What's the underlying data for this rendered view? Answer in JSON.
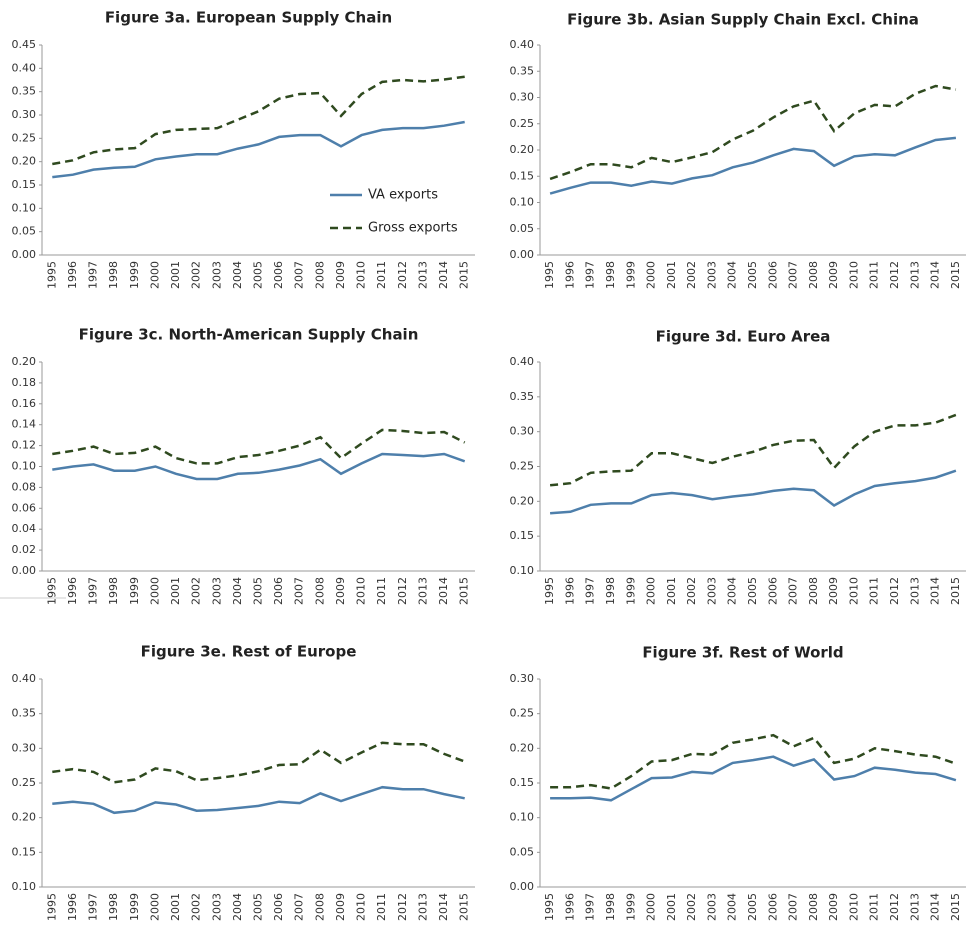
{
  "chart_data": [
    {
      "type": "line",
      "title": "Figure 3a. European Supply Chain",
      "categories": [
        "1995",
        "1996",
        "1997",
        "1998",
        "1999",
        "2000",
        "2001",
        "2002",
        "2003",
        "2004",
        "2005",
        "2006",
        "2007",
        "2008",
        "2009",
        "2010",
        "2011",
        "2012",
        "2013",
        "2014",
        "2015"
      ],
      "series": [
        {
          "name": "VA exports",
          "color": "#4e7fab",
          "dashed": false,
          "values": [
            0.167,
            0.172,
            0.183,
            0.187,
            0.189,
            0.205,
            0.211,
            0.216,
            0.216,
            0.228,
            0.237,
            0.253,
            0.257,
            0.257,
            0.233,
            0.257,
            0.268,
            0.272,
            0.272,
            0.277,
            0.285
          ]
        },
        {
          "name": "Gross exports",
          "color": "#2f4a1f",
          "dashed": true,
          "values": [
            0.195,
            0.203,
            0.22,
            0.226,
            0.229,
            0.259,
            0.268,
            0.27,
            0.272,
            0.29,
            0.308,
            0.335,
            0.345,
            0.347,
            0.298,
            0.345,
            0.371,
            0.375,
            0.372,
            0.376,
            0.382
          ]
        }
      ],
      "ylim": [
        0,
        0.45
      ],
      "yticks": [
        {
          "value": 0,
          "label": "0.00"
        },
        {
          "value": 0.05,
          "label": "0.05"
        },
        {
          "value": 0.1,
          "label": "0.10"
        },
        {
          "value": 0.15,
          "label": "0.15"
        },
        {
          "value": 0.2,
          "label": "0.20"
        },
        {
          "value": 0.25,
          "label": "0.25"
        },
        {
          "value": 0.3,
          "label": "0.30"
        },
        {
          "value": 0.35,
          "label": "0.35"
        },
        {
          "value": 0.4,
          "label": "0.40"
        },
        {
          "value": 0.45,
          "label": "0.45"
        }
      ],
      "legend": "lower right",
      "grid": false
    },
    {
      "type": "line",
      "title": "Figure 3b. Asian Supply Chain Excl. China",
      "categories": [
        "1995",
        "1996",
        "1997",
        "1998",
        "1999",
        "2000",
        "2001",
        "2002",
        "2003",
        "2004",
        "2005",
        "2006",
        "2007",
        "2008",
        "2009",
        "2010",
        "2011",
        "2012",
        "2013",
        "2014",
        "2015"
      ],
      "series": [
        {
          "name": "VA exports",
          "color": "#4e7fab",
          "dashed": false,
          "values": [
            0.117,
            0.128,
            0.138,
            0.138,
            0.132,
            0.14,
            0.136,
            0.146,
            0.152,
            0.167,
            0.176,
            0.19,
            0.202,
            0.198,
            0.17,
            0.188,
            0.192,
            0.19,
            0.205,
            0.219,
            0.223
          ]
        },
        {
          "name": "Gross exports",
          "color": "#2f4a1f",
          "dashed": true,
          "values": [
            0.145,
            0.158,
            0.173,
            0.173,
            0.167,
            0.185,
            0.177,
            0.186,
            0.196,
            0.22,
            0.237,
            0.262,
            0.283,
            0.294,
            0.236,
            0.27,
            0.286,
            0.283,
            0.307,
            0.322,
            0.315
          ]
        }
      ],
      "ylim": [
        0,
        0.4
      ],
      "yticks": [
        {
          "value": 0,
          "label": "0.00"
        },
        {
          "value": 0.05,
          "label": "0.05"
        },
        {
          "value": 0.1,
          "label": "0.10"
        },
        {
          "value": 0.15,
          "label": "0.15"
        },
        {
          "value": 0.2,
          "label": "0.20"
        },
        {
          "value": 0.25,
          "label": "0.25"
        },
        {
          "value": 0.3,
          "label": "0.30"
        },
        {
          "value": 0.35,
          "label": "0.35"
        },
        {
          "value": 0.4,
          "label": "0.40"
        }
      ],
      "grid": false
    },
    {
      "type": "line",
      "title": "Figure 3c. North-American Supply Chain",
      "categories": [
        "1995",
        "1996",
        "1997",
        "1998",
        "1999",
        "2000",
        "2001",
        "2002",
        "2003",
        "2004",
        "2005",
        "2006",
        "2007",
        "2008",
        "2009",
        "2010",
        "2011",
        "2012",
        "2013",
        "2014",
        "2015"
      ],
      "series": [
        {
          "name": "VA exports",
          "color": "#4e7fab",
          "dashed": false,
          "values": [
            0.097,
            0.1,
            0.102,
            0.096,
            0.096,
            0.1,
            0.093,
            0.088,
            0.088,
            0.093,
            0.094,
            0.097,
            0.101,
            0.107,
            0.093,
            0.103,
            0.112,
            0.111,
            0.11,
            0.112,
            0.105
          ]
        },
        {
          "name": "Gross exports",
          "color": "#2f4a1f",
          "dashed": true,
          "values": [
            0.112,
            0.115,
            0.119,
            0.112,
            0.113,
            0.119,
            0.108,
            0.103,
            0.103,
            0.109,
            0.111,
            0.115,
            0.12,
            0.128,
            0.108,
            0.122,
            0.135,
            0.134,
            0.132,
            0.133,
            0.123
          ]
        }
      ],
      "ylim": [
        0,
        0.2
      ],
      "yticks": [
        {
          "value": 0,
          "label": "0.00"
        },
        {
          "value": 0.02,
          "label": "0.02"
        },
        {
          "value": 0.04,
          "label": "0.04"
        },
        {
          "value": 0.06,
          "label": "0.06"
        },
        {
          "value": 0.08,
          "label": "0.08"
        },
        {
          "value": 0.1,
          "label": "0.10"
        },
        {
          "value": 0.12,
          "label": "0.12"
        },
        {
          "value": 0.14,
          "label": "0.14"
        },
        {
          "value": 0.16,
          "label": "0.16"
        },
        {
          "value": 0.18,
          "label": "0.18"
        },
        {
          "value": 0.2,
          "label": "0.20"
        }
      ],
      "grid": false
    },
    {
      "type": "line",
      "title": "Figure 3d. Euro Area",
      "categories": [
        "1995",
        "1996",
        "1997",
        "1998",
        "1999",
        "2000",
        "2001",
        "2002",
        "2003",
        "2004",
        "2005",
        "2006",
        "2007",
        "2008",
        "2009",
        "2010",
        "2011",
        "2012",
        "2013",
        "2014",
        "2015"
      ],
      "series": [
        {
          "name": "VA exports",
          "color": "#4e7fab",
          "dashed": false,
          "values": [
            0.183,
            0.185,
            0.195,
            0.197,
            0.197,
            0.209,
            0.212,
            0.209,
            0.203,
            0.207,
            0.21,
            0.215,
            0.218,
            0.216,
            0.194,
            0.21,
            0.222,
            0.226,
            0.229,
            0.234,
            0.244
          ]
        },
        {
          "name": "Gross exports",
          "color": "#2f4a1f",
          "dashed": true,
          "values": [
            0.223,
            0.226,
            0.241,
            0.243,
            0.244,
            0.269,
            0.269,
            0.262,
            0.255,
            0.264,
            0.271,
            0.281,
            0.287,
            0.288,
            0.248,
            0.279,
            0.3,
            0.309,
            0.309,
            0.313,
            0.324
          ]
        }
      ],
      "ylim": [
        0.1,
        0.4
      ],
      "yticks": [
        {
          "value": 0.1,
          "label": "0.10"
        },
        {
          "value": 0.15,
          "label": "0.15"
        },
        {
          "value": 0.2,
          "label": "0.20"
        },
        {
          "value": 0.25,
          "label": "0.25"
        },
        {
          "value": 0.3,
          "label": "0.30"
        },
        {
          "value": 0.35,
          "label": "0.35"
        },
        {
          "value": 0.4,
          "label": "0.40"
        }
      ],
      "grid": false
    },
    {
      "type": "line",
      "title": "Figure 3e. Rest of Europe",
      "categories": [
        "1995",
        "1996",
        "1997",
        "1998",
        "1999",
        "2000",
        "2001",
        "2002",
        "2003",
        "2004",
        "2005",
        "2006",
        "2007",
        "2008",
        "2009",
        "2010",
        "2011",
        "2012",
        "2013",
        "2014",
        "2015"
      ],
      "series": [
        {
          "name": "VA exports",
          "color": "#4e7fab",
          "dashed": false,
          "values": [
            0.22,
            0.223,
            0.22,
            0.207,
            0.21,
            0.222,
            0.219,
            0.21,
            0.211,
            0.214,
            0.217,
            0.223,
            0.221,
            0.235,
            0.224,
            0.234,
            0.244,
            0.241,
            0.241,
            0.234,
            0.228
          ]
        },
        {
          "name": "Gross exports",
          "color": "#2f4a1f",
          "dashed": true,
          "values": [
            0.266,
            0.27,
            0.266,
            0.251,
            0.255,
            0.271,
            0.267,
            0.254,
            0.257,
            0.261,
            0.267,
            0.276,
            0.277,
            0.298,
            0.279,
            0.294,
            0.308,
            0.306,
            0.306,
            0.292,
            0.281
          ]
        }
      ],
      "ylim": [
        0.1,
        0.4
      ],
      "yticks": [
        {
          "value": 0.1,
          "label": "0.10"
        },
        {
          "value": 0.15,
          "label": "0.15"
        },
        {
          "value": 0.2,
          "label": "0.20"
        },
        {
          "value": 0.25,
          "label": "0.25"
        },
        {
          "value": 0.3,
          "label": "0.30"
        },
        {
          "value": 0.35,
          "label": "0.35"
        },
        {
          "value": 0.4,
          "label": "0.40"
        }
      ],
      "grid": false
    },
    {
      "type": "line",
      "title": "Figure 3f. Rest of World",
      "categories": [
        "1995",
        "1996",
        "1997",
        "1998",
        "1999",
        "2000",
        "2001",
        "2002",
        "2003",
        "2004",
        "2005",
        "2006",
        "2007",
        "2008",
        "2009",
        "2010",
        "2011",
        "2012",
        "2013",
        "2014",
        "2015"
      ],
      "series": [
        {
          "name": "VA exports",
          "color": "#4e7fab",
          "dashed": false,
          "values": [
            0.128,
            0.128,
            0.129,
            0.125,
            0.141,
            0.157,
            0.158,
            0.166,
            0.164,
            0.179,
            0.183,
            0.188,
            0.175,
            0.184,
            0.155,
            0.16,
            0.172,
            0.169,
            0.165,
            0.163,
            0.154
          ]
        },
        {
          "name": "Gross exports",
          "color": "#2f4a1f",
          "dashed": true,
          "values": [
            0.144,
            0.144,
            0.147,
            0.142,
            0.16,
            0.181,
            0.183,
            0.192,
            0.191,
            0.208,
            0.213,
            0.219,
            0.203,
            0.215,
            0.179,
            0.185,
            0.2,
            0.196,
            0.191,
            0.188,
            0.178
          ]
        }
      ],
      "ylim": [
        0,
        0.3
      ],
      "yticks": [
        {
          "value": 0,
          "label": "0.00"
        },
        {
          "value": 0.05,
          "label": "0.05"
        },
        {
          "value": 0.1,
          "label": "0.10"
        },
        {
          "value": 0.15,
          "label": "0.15"
        },
        {
          "value": 0.2,
          "label": "0.20"
        },
        {
          "value": 0.25,
          "label": "0.25"
        },
        {
          "value": 0.3,
          "label": "0.30"
        }
      ],
      "grid": false
    }
  ]
}
